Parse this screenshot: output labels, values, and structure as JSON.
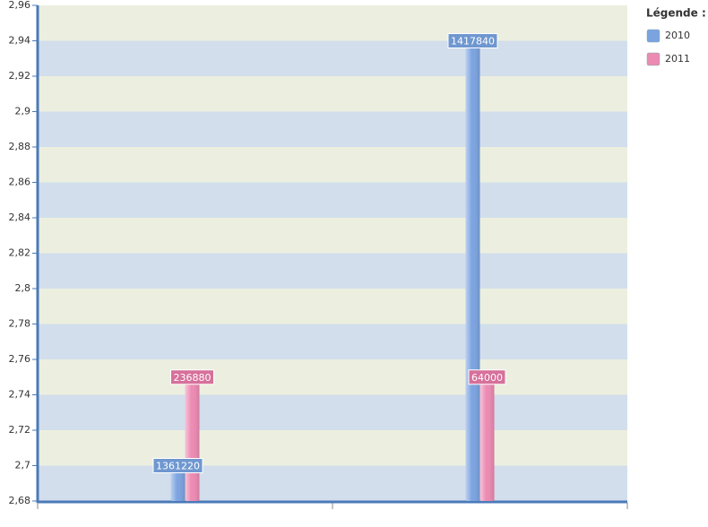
{
  "chart_data": {
    "type": "bar",
    "categories": [
      null,
      null
    ],
    "series": [
      {
        "name": "2010",
        "color": "#7ba3e0",
        "values": [
          2.7,
          2.94
        ],
        "value_labels": [
          "1361220",
          "1417840"
        ]
      },
      {
        "name": "2011",
        "color": "#ec8ab2",
        "values": [
          2.75,
          2.75
        ],
        "value_labels": [
          "236880",
          "64000"
        ]
      }
    ],
    "ylim": [
      2.68,
      2.96
    ],
    "yticks": [
      {
        "value": 2.68,
        "label": "2,68"
      },
      {
        "value": 2.7,
        "label": "2,7"
      },
      {
        "value": 2.72,
        "label": "2,72"
      },
      {
        "value": 2.74,
        "label": "2,74"
      },
      {
        "value": 2.76,
        "label": "2,76"
      },
      {
        "value": 2.78,
        "label": "2,78"
      },
      {
        "value": 2.8,
        "label": "2,8"
      },
      {
        "value": 2.82,
        "label": "2,82"
      },
      {
        "value": 2.84,
        "label": "2,84"
      },
      {
        "value": 2.86,
        "label": "2,86"
      },
      {
        "value": 2.88,
        "label": "2,88"
      },
      {
        "value": 2.9,
        "label": "2,9"
      },
      {
        "value": 2.92,
        "label": "2,92"
      },
      {
        "value": 2.94,
        "label": "2,94"
      },
      {
        "value": 2.96,
        "label": "2,96"
      }
    ],
    "legend_title": "Légende :",
    "band_colors": [
      "#d2deec",
      "#ecefdf"
    ]
  }
}
